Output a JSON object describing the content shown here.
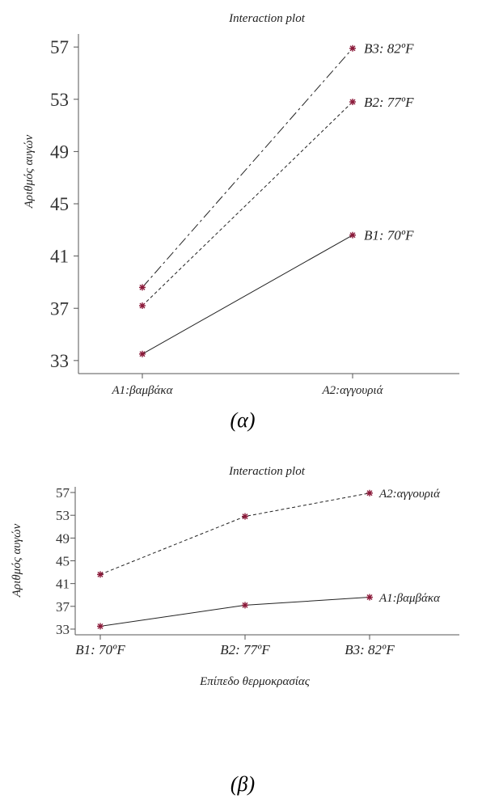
{
  "chart_data": [
    {
      "type": "line",
      "title": "Interaction plot",
      "ylabel": "Αριθμός αυγών",
      "xlabel": "",
      "caption": "(α)",
      "categories": [
        "A1:βαμβάκα",
        "A2:αγγουριά"
      ],
      "yticks": [
        "57",
        "53",
        "49",
        "45",
        "41",
        "37",
        "33"
      ],
      "ylim": [
        32,
        58
      ],
      "series": [
        {
          "name": "B1: 70ºF",
          "values": [
            33.5,
            42.6
          ],
          "dash": "solid"
        },
        {
          "name": "B2: 77ºF",
          "values": [
            37.2,
            52.8
          ],
          "dash": "dashed"
        },
        {
          "name": "B3: 82ºF",
          "values": [
            38.6,
            56.9
          ],
          "dash": "dashdot"
        }
      ],
      "marker_color": "#8b1a3a"
    },
    {
      "type": "line",
      "title": "Interaction plot",
      "ylabel": "Αριθμός αυγών",
      "xlabel": "Επίπεδο θερμοκρασίας",
      "caption": "(β)",
      "categories": [
        "B1: 70ºF",
        "B2: 77ºF",
        "B3: 82ºF"
      ],
      "yticks": [
        "57",
        "53",
        "49",
        "45",
        "41",
        "37",
        "33"
      ],
      "ylim": [
        32,
        58
      ],
      "series": [
        {
          "name": "A1:βαμβάκα",
          "values": [
            33.5,
            37.2,
            38.6
          ],
          "dash": "solid"
        },
        {
          "name": "A2:αγγουριά",
          "values": [
            42.6,
            52.8,
            56.9
          ],
          "dash": "dashed"
        }
      ],
      "marker_color": "#8b1a3a"
    }
  ]
}
